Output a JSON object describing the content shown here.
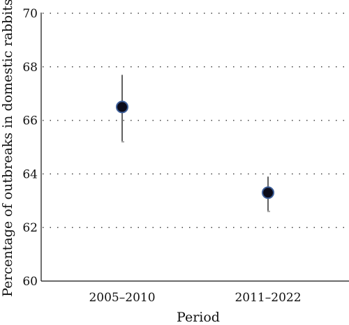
{
  "chart_data": {
    "type": "scatter",
    "categories": [
      "2005–2010",
      "2011–2022"
    ],
    "series": [
      {
        "values": [
          66.5,
          63.3
        ],
        "error_low": [
          65.2,
          62.6
        ],
        "error_high": [
          67.7,
          63.9
        ]
      }
    ],
    "xlabel": "Period",
    "ylabel": "Percentage of outbreaks in domestic rabbits",
    "ylim": [
      60,
      70
    ],
    "yticks": [
      60,
      62,
      64,
      66,
      68,
      70
    ],
    "grid": true,
    "colors": {
      "marker_fill": "#0b0b1a",
      "marker_edge": "#3e5f99",
      "error_bar": "#3a3a3a",
      "error_cap": "#a6a6a6",
      "grid": "#444444",
      "axis": "#111111"
    }
  }
}
